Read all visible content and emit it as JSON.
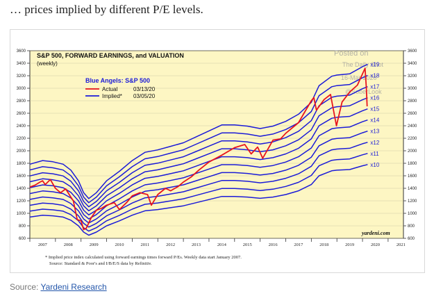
{
  "article": {
    "lead_text": "… prices implied by different P/E levels.",
    "source_label": "Source:",
    "source_link": "Yardeni Research"
  },
  "chart_data": {
    "type": "line",
    "title": "S&P 500, FORWARD EARNINGS, and VALUATION",
    "subtitle": "(weekly)",
    "legend_title": "Blue Angels: S&P 500",
    "legend": [
      {
        "label": "Actual",
        "date": "03/13/20",
        "color": "#e8141c"
      },
      {
        "label": "Implied*",
        "date": "03/05/20",
        "color": "#1b1bd8"
      }
    ],
    "watermark": [
      "Posted on",
      "The Daily Shot",
      "16-Mar-2020",
      "@SoberLook"
    ],
    "credit": "yardeni.com",
    "footnote_1": "* Implied price index calculated using forward earnings times forward P/Es. Weekly data start January 2007.",
    "footnote_2": "Source: Standard & Poor's and I/B/E/S data by Refinitiv.",
    "ylim": [
      600,
      3600
    ],
    "yticks": [
      600,
      800,
      1000,
      1200,
      1400,
      1600,
      1800,
      2000,
      2200,
      2400,
      2600,
      2800,
      3000,
      3200,
      3400,
      3600
    ],
    "xlim": [
      2007,
      2021.6
    ],
    "x_tick_labels": [
      "2007",
      "2008",
      "2009",
      "2010",
      "2011",
      "2012",
      "2013",
      "2014",
      "2015",
      "2016",
      "2017",
      "2018",
      "2019",
      "2020",
      "2021"
    ],
    "multiples": [
      "x10",
      "x11",
      "x12",
      "x13",
      "x14",
      "x15",
      "x16",
      "x17",
      "x18",
      "x19"
    ],
    "multiple_values": [
      10,
      11,
      12,
      13,
      14,
      15,
      16,
      17,
      18,
      19
    ],
    "forward_earnings": {
      "x": [
        2007.0,
        2007.5,
        2007.9,
        2008.3,
        2008.6,
        2008.9,
        2009.1,
        2009.3,
        2009.6,
        2010.0,
        2010.5,
        2011.0,
        2011.5,
        2012.0,
        2012.5,
        2013.0,
        2013.5,
        2014.0,
        2014.5,
        2015.0,
        2015.5,
        2016.0,
        2016.5,
        2017.0,
        2017.5,
        2018.0,
        2018.3,
        2018.8,
        2019.0,
        2019.5,
        2020.0,
        2020.2
      ],
      "y": [
        94,
        97,
        96,
        94,
        89,
        80,
        70,
        65,
        70,
        80,
        88,
        97,
        104,
        106,
        109,
        112,
        117,
        122,
        127,
        127,
        126,
        124,
        126,
        130,
        136,
        146,
        160,
        168,
        169,
        170,
        176,
        178
      ]
    },
    "series": [
      {
        "name": "Actual S&P 500",
        "x": [
          2007.0,
          2007.2,
          2007.4,
          2007.5,
          2007.6,
          2007.8,
          2008.0,
          2008.2,
          2008.4,
          2008.6,
          2008.7,
          2008.85,
          2009.0,
          2009.1,
          2009.2,
          2009.4,
          2009.6,
          2009.8,
          2010.0,
          2010.3,
          2010.5,
          2010.8,
          2011.0,
          2011.3,
          2011.6,
          2011.75,
          2012.0,
          2012.3,
          2012.5,
          2012.8,
          2013.0,
          2013.3,
          2013.6,
          2014.0,
          2014.5,
          2015.0,
          2015.4,
          2015.65,
          2015.9,
          2016.1,
          2016.5,
          2016.8,
          2017.0,
          2017.5,
          2018.0,
          2018.1,
          2018.2,
          2018.5,
          2018.75,
          2018.98,
          2019.2,
          2019.5,
          2019.8,
          2020.1,
          2020.15,
          2020.18
        ],
        "y": [
          1420,
          1450,
          1500,
          1520,
          1460,
          1540,
          1400,
          1330,
          1390,
          1260,
          1200,
          900,
          880,
          740,
          760,
          930,
          1050,
          1080,
          1130,
          1170,
          1060,
          1180,
          1280,
          1330,
          1300,
          1130,
          1300,
          1400,
          1360,
          1430,
          1500,
          1580,
          1690,
          1820,
          1930,
          2050,
          2100,
          1950,
          2060,
          1880,
          2170,
          2190,
          2280,
          2450,
          2800,
          2850,
          2650,
          2820,
          2900,
          2400,
          2780,
          2940,
          3050,
          3320,
          3000,
          2710
        ]
      }
    ]
  }
}
